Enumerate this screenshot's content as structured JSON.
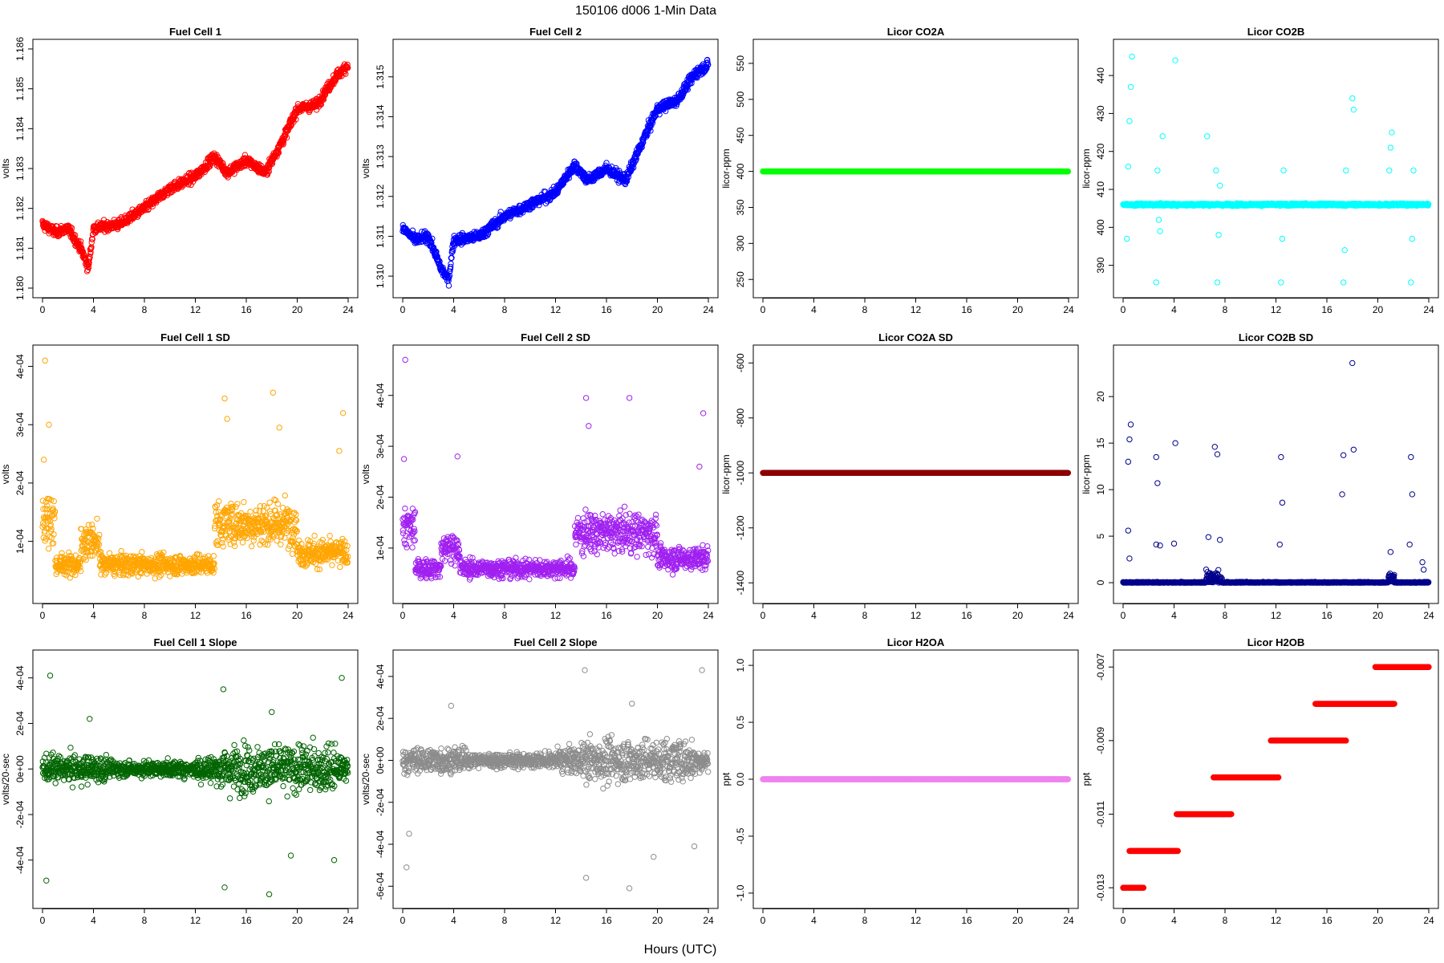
{
  "figure": {
    "main_title": "150106    d006    1-Min Data",
    "xlabel": "Hours (UTC)"
  },
  "chart_data": [
    {
      "type": "scatter",
      "title": "Fuel Cell 1",
      "ylabel": "volts",
      "color": "#ff0000",
      "xlim": [
        0,
        24
      ],
      "ylim": [
        1.18,
        1.186
      ],
      "xticks": [
        "0",
        "4",
        "8",
        "12",
        "16",
        "20",
        "24"
      ],
      "yticks": [
        "1.180",
        "1.181",
        "1.182",
        "1.183",
        "1.184",
        "1.185",
        "1.186"
      ],
      "y_tick_values": [
        1.18,
        1.181,
        1.182,
        1.183,
        1.184,
        1.185,
        1.186
      ],
      "trend": [
        [
          0,
          1.1816
        ],
        [
          1,
          1.1814
        ],
        [
          2,
          1.1815
        ],
        [
          3,
          1.181
        ],
        [
          3.6,
          1.1805
        ],
        [
          4,
          1.1815
        ],
        [
          6,
          1.1816
        ],
        [
          8,
          1.182
        ],
        [
          10,
          1.1825
        ],
        [
          12,
          1.1828
        ],
        [
          13.5,
          1.1833
        ],
        [
          14.5,
          1.1829
        ],
        [
          16,
          1.1832
        ],
        [
          17.5,
          1.1829
        ],
        [
          19,
          1.1838
        ],
        [
          20,
          1.1845
        ],
        [
          21.5,
          1.1846
        ],
        [
          23,
          1.1853
        ],
        [
          24,
          1.1856
        ]
      ]
    },
    {
      "type": "scatter",
      "title": "Fuel Cell 2",
      "ylabel": "volts",
      "color": "#0000ff",
      "xlim": [
        0,
        24
      ],
      "ylim": [
        1.3097,
        1.3157
      ],
      "xticks": [
        "0",
        "4",
        "8",
        "12",
        "16",
        "20",
        "24"
      ],
      "yticks": [
        "1.310",
        "1.311",
        "1.312",
        "1.313",
        "1.314",
        "1.315"
      ],
      "y_tick_values": [
        1.31,
        1.311,
        1.312,
        1.313,
        1.314,
        1.315
      ],
      "trend": [
        [
          0,
          1.3112
        ],
        [
          1,
          1.3109
        ],
        [
          2,
          1.311
        ],
        [
          3,
          1.3102
        ],
        [
          3.6,
          1.3099
        ],
        [
          4,
          1.3109
        ],
        [
          6,
          1.311
        ],
        [
          8,
          1.3115
        ],
        [
          10,
          1.3118
        ],
        [
          12,
          1.3121
        ],
        [
          13.5,
          1.3128
        ],
        [
          14.5,
          1.3124
        ],
        [
          16,
          1.3127
        ],
        [
          17.5,
          1.3124
        ],
        [
          19,
          1.3135
        ],
        [
          20,
          1.3142
        ],
        [
          21.5,
          1.3144
        ],
        [
          23,
          1.3151
        ],
        [
          24,
          1.3153
        ]
      ]
    },
    {
      "type": "scatter",
      "title": "Licor CO2A",
      "ylabel": "licor-ppm",
      "color": "#00ff00",
      "xlim": [
        0,
        24
      ],
      "ylim": [
        238,
        570
      ],
      "xticks": [
        "0",
        "4",
        "8",
        "12",
        "16",
        "20",
        "24"
      ],
      "yticks": [
        "250",
        "300",
        "350",
        "400",
        "450",
        "500",
        "550"
      ],
      "y_tick_values": [
        250,
        300,
        350,
        400,
        450,
        500,
        550
      ],
      "constant": 400
    },
    {
      "type": "scatter",
      "title": "Licor CO2B",
      "ylabel": "licor-ppm",
      "color": "#00ffff",
      "xlim": [
        0,
        24
      ],
      "ylim": [
        384,
        447
      ],
      "xticks": [
        "0",
        "4",
        "8",
        "12",
        "16",
        "20",
        "24"
      ],
      "yticks": [
        "390",
        "400",
        "410",
        "420",
        "430",
        "440"
      ],
      "y_tick_values": [
        390,
        400,
        410,
        420,
        430,
        440
      ],
      "baseline": 406,
      "spikes": [
        [
          0.3,
          397
        ],
        [
          0.4,
          416
        ],
        [
          0.5,
          428
        ],
        [
          0.6,
          437
        ],
        [
          0.7,
          445
        ],
        [
          0.8,
          406
        ],
        [
          2.6,
          385.5
        ],
        [
          2.7,
          415
        ],
        [
          2.8,
          402
        ],
        [
          2.9,
          399
        ],
        [
          3.1,
          424
        ],
        [
          4.1,
          444
        ],
        [
          6.6,
          424
        ],
        [
          7.3,
          415
        ],
        [
          7.4,
          385.5
        ],
        [
          7.5,
          398
        ],
        [
          7.6,
          411
        ],
        [
          12.4,
          385.5
        ],
        [
          12.5,
          397
        ],
        [
          12.6,
          415
        ],
        [
          17.3,
          385.5
        ],
        [
          17.4,
          394
        ],
        [
          17.5,
          415
        ],
        [
          18.0,
          434
        ],
        [
          18.1,
          431
        ],
        [
          20.9,
          415
        ],
        [
          21.0,
          421
        ],
        [
          21.1,
          425
        ],
        [
          22.6,
          385.5
        ],
        [
          22.7,
          397
        ],
        [
          22.8,
          415
        ]
      ]
    },
    {
      "type": "scatter",
      "title": "Fuel Cell 1 SD",
      "ylabel": "volts",
      "color": "#ffa500",
      "xlim": [
        0,
        24
      ],
      "ylim": [
        1e-05,
        0.00042
      ],
      "xticks": [
        "0",
        "4",
        "8",
        "12",
        "16",
        "20",
        "24"
      ],
      "yticks": [
        "1e-04",
        "2e-04",
        "3e-04",
        "4e-04"
      ],
      "y_tick_values": [
        0.0001,
        0.0002,
        0.0003,
        0.0004
      ],
      "outliers": [
        [
          0.2,
          0.00041
        ],
        [
          0.5,
          0.0003
        ],
        [
          0.1,
          0.00024
        ],
        [
          14.3,
          0.000345
        ],
        [
          14.5,
          0.00031
        ],
        [
          18.1,
          0.000355
        ],
        [
          18.6,
          0.000295
        ],
        [
          23.6,
          0.00032
        ],
        [
          23.3,
          0.000255
        ]
      ]
    },
    {
      "type": "scatter",
      "title": "Fuel Cell 2 SD",
      "ylabel": "volts",
      "color": "#a020f0",
      "xlim": [
        0,
        24
      ],
      "ylim": [
        1e-05,
        0.00048
      ],
      "xticks": [
        "0",
        "4",
        "8",
        "12",
        "16",
        "20",
        "24"
      ],
      "yticks": [
        "1e-04",
        "2e-04",
        "3e-04",
        "4e-04"
      ],
      "y_tick_values": [
        0.0001,
        0.0002,
        0.0003,
        0.0004
      ],
      "outliers": [
        [
          0.2,
          0.00047
        ],
        [
          0.1,
          0.000275
        ],
        [
          4.3,
          0.00028
        ],
        [
          14.4,
          0.000395
        ],
        [
          14.6,
          0.00034
        ],
        [
          17.8,
          0.000395
        ],
        [
          23.6,
          0.000365
        ],
        [
          23.3,
          0.00026
        ]
      ]
    },
    {
      "type": "scatter",
      "title": "Licor CO2A SD",
      "ylabel": "licor-ppm",
      "color": "#8b0000",
      "xlim": [
        0,
        24
      ],
      "ylim": [
        -1440,
        -570
      ],
      "xticks": [
        "0",
        "4",
        "8",
        "12",
        "16",
        "20",
        "24"
      ],
      "yticks": [
        "-1400",
        "-1200",
        "-1000",
        "-800",
        "-600"
      ],
      "y_tick_values": [
        -1400,
        -1200,
        -1000,
        -800,
        -600
      ],
      "constant": -1000
    },
    {
      "type": "scatter",
      "title": "Licor CO2B SD",
      "ylabel": "licor-ppm",
      "color": "#00008b",
      "xlim": [
        0,
        24
      ],
      "ylim": [
        -1.2,
        24.5
      ],
      "xticks": [
        "0",
        "4",
        "8",
        "12",
        "16",
        "20",
        "24"
      ],
      "yticks": [
        "0",
        "5",
        "10",
        "15",
        "20"
      ],
      "y_tick_values": [
        0,
        5,
        10,
        15,
        20
      ],
      "spikes": [
        [
          0.4,
          13
        ],
        [
          0.5,
          15.4
        ],
        [
          0.6,
          17
        ],
        [
          0.4,
          5.6
        ],
        [
          0.5,
          2.6
        ],
        [
          2.6,
          13.5
        ],
        [
          2.7,
          10.7
        ],
        [
          2.6,
          4.1
        ],
        [
          2.9,
          4
        ],
        [
          4.1,
          15
        ],
        [
          4.0,
          4.2
        ],
        [
          6.7,
          4.9
        ],
        [
          7.2,
          14.6
        ],
        [
          7.4,
          13.8
        ],
        [
          7.6,
          4.6
        ],
        [
          12.4,
          13.5
        ],
        [
          12.5,
          8.6
        ],
        [
          12.3,
          4.1
        ],
        [
          17.3,
          13.7
        ],
        [
          17.2,
          9.5
        ],
        [
          18.0,
          23.6
        ],
        [
          18.1,
          14.3
        ],
        [
          21.0,
          3.3
        ],
        [
          22.6,
          13.5
        ],
        [
          22.7,
          9.5
        ],
        [
          22.5,
          4.1
        ],
        [
          23.5,
          2.2
        ],
        [
          23.6,
          1.4
        ]
      ]
    },
    {
      "type": "scatter",
      "title": "Fuel Cell 1 Slope",
      "ylabel": "volts/20-sec",
      "color": "#006400",
      "xlim": [
        0,
        24
      ],
      "ylim": [
        -0.00057,
        0.00048
      ],
      "xticks": [
        "0",
        "4",
        "8",
        "12",
        "16",
        "20",
        "24"
      ],
      "yticks": [
        "-4e-04",
        "-2e-04",
        "0e+00",
        "2e-04",
        "4e-04"
      ],
      "y_tick_values": [
        -0.0004,
        -0.0002,
        0,
        0.0002,
        0.0004
      ],
      "outliers": [
        [
          0.3,
          -0.00049
        ],
        [
          0.6,
          0.00041
        ],
        [
          3.7,
          0.00022
        ],
        [
          14.3,
          -0.00052
        ],
        [
          14.2,
          0.00035
        ],
        [
          17.8,
          -0.00055
        ],
        [
          18.0,
          0.00025
        ],
        [
          19.5,
          -0.00038
        ],
        [
          22.9,
          -0.0004
        ],
        [
          23.5,
          0.0004
        ]
      ]
    },
    {
      "type": "scatter",
      "title": "Fuel Cell 2 Slope",
      "ylabel": "volts/20-sec",
      "color": "#8c8c8c",
      "xlim": [
        0,
        24
      ],
      "ylim": [
        -0.00066,
        0.00048
      ],
      "xticks": [
        "0",
        "4",
        "8",
        "12",
        "16",
        "20",
        "24"
      ],
      "yticks": [
        "-6e-04",
        "-4e-04",
        "-2e-04",
        "0e+00",
        "2e-04",
        "4e-04"
      ],
      "y_tick_values": [
        -0.0006,
        -0.0004,
        -0.0002,
        0,
        0.0002,
        0.0004
      ],
      "outliers": [
        [
          0.3,
          -0.00051
        ],
        [
          0.5,
          -0.00035
        ],
        [
          3.8,
          0.00026
        ],
        [
          14.3,
          0.00043
        ],
        [
          14.4,
          -0.00056
        ],
        [
          17.8,
          -0.00061
        ],
        [
          18.0,
          0.00027
        ],
        [
          19.7,
          -0.00046
        ],
        [
          22.9,
          -0.00041
        ],
        [
          23.5,
          0.00043
        ]
      ]
    },
    {
      "type": "scatter",
      "title": "Licor H2OA",
      "ylabel": "ppt",
      "color": "#ee82ee",
      "xlim": [
        0,
        24
      ],
      "ylim": [
        -1.05,
        1.05
      ],
      "xticks": [
        "0",
        "4",
        "8",
        "12",
        "16",
        "20",
        "24"
      ],
      "yticks": [
        "-1.0",
        "-0.5",
        "0.0",
        "0.5",
        "1.0"
      ],
      "y_tick_values": [
        -1,
        -0.5,
        0,
        0.5,
        1
      ],
      "constant": 0
    },
    {
      "type": "scatter",
      "title": "Licor H2OB",
      "ylabel": "ppt",
      "color": "#ff0000",
      "xlim": [
        0,
        24
      ],
      "ylim": [
        -0.0133,
        -0.0068
      ],
      "xticks": [
        "0",
        "4",
        "8",
        "12",
        "16",
        "20",
        "24"
      ],
      "yticks": [
        "-0.013",
        "-0.011",
        "-0.009",
        "-0.007"
      ],
      "y_tick_values": [
        -0.013,
        -0.011,
        -0.009,
        -0.007
      ],
      "steps": [
        [
          0,
          1.6,
          -0.013
        ],
        [
          0.5,
          4.3,
          -0.012
        ],
        [
          4.2,
          8.5,
          -0.011
        ],
        [
          7.1,
          12.2,
          -0.01
        ],
        [
          11.6,
          17.5,
          -0.009
        ],
        [
          15.1,
          21.3,
          -0.008
        ],
        [
          19.8,
          24,
          -0.007
        ]
      ]
    }
  ]
}
